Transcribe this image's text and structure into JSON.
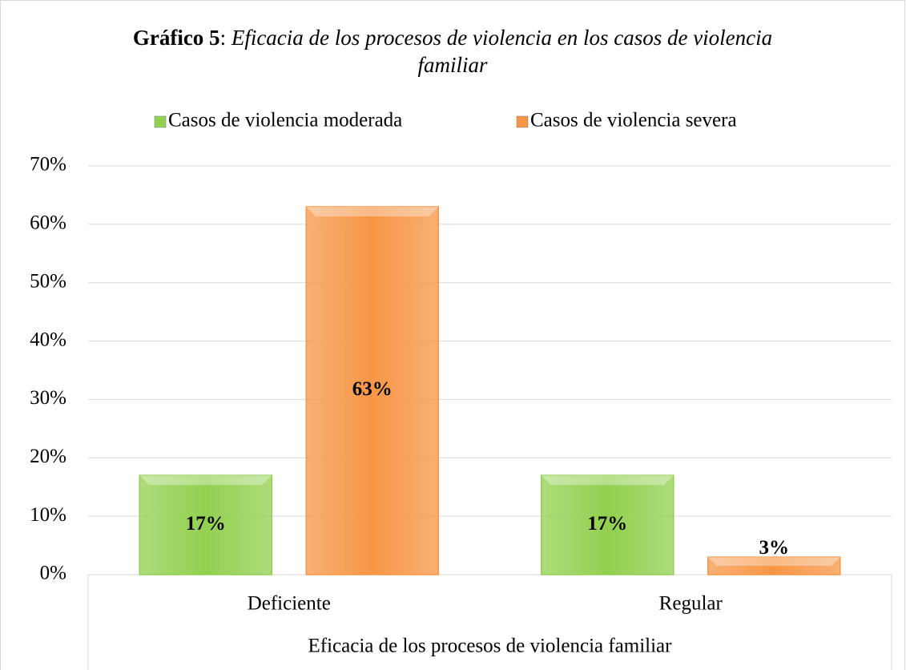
{
  "chart_data": {
    "type": "bar",
    "title_prefix": "Gráfico 5",
    "title_separator": ":",
    "title": "Eficacia de los procesos de violencia en los casos de violencia familiar",
    "xlabel": "Eficacia de los procesos de violencia familiar",
    "categories": [
      "Deficiente",
      "Regular"
    ],
    "series": [
      {
        "name": "Casos de violencia moderada",
        "color": "#92d050",
        "values": [
          17,
          17
        ],
        "value_labels": [
          "17%",
          "17%"
        ]
      },
      {
        "name": "Casos de violencia severa",
        "color": "#f79646",
        "values": [
          63,
          3
        ],
        "value_labels": [
          "63%",
          "3%"
        ]
      }
    ],
    "ylim": [
      0,
      70
    ],
    "yticks": [
      {
        "value": 0,
        "label": "0%"
      },
      {
        "value": 10,
        "label": "10%"
      },
      {
        "value": 20,
        "label": "20%"
      },
      {
        "value": 30,
        "label": "30%"
      },
      {
        "value": 40,
        "label": "40%"
      },
      {
        "value": 50,
        "label": "50%"
      },
      {
        "value": 60,
        "label": "60%"
      },
      {
        "value": 70,
        "label": "70%"
      }
    ],
    "grid": true,
    "legend": "top"
  }
}
